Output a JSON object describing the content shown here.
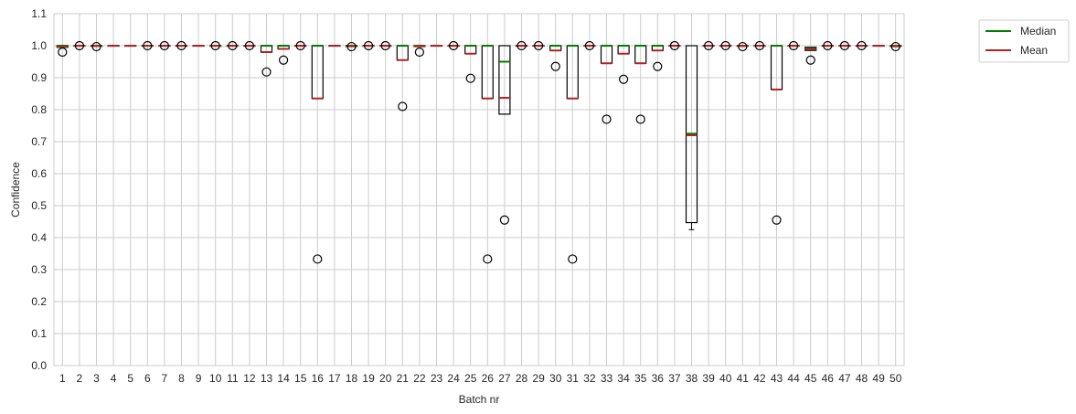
{
  "chart_data": {
    "type": "boxplot",
    "xlabel": "Batch nr",
    "ylabel": "Confidence",
    "ylim": [
      0.0,
      1.1
    ],
    "yticks": [
      0.0,
      0.1,
      0.2,
      0.3,
      0.4,
      0.5,
      0.6,
      0.7,
      0.8,
      0.9,
      1.0,
      1.1
    ],
    "categories": [
      "1",
      "2",
      "3",
      "4",
      "5",
      "6",
      "7",
      "8",
      "9",
      "10",
      "11",
      "12",
      "13",
      "14",
      "15",
      "16",
      "17",
      "18",
      "19",
      "20",
      "21",
      "22",
      "23",
      "24",
      "25",
      "26",
      "27",
      "28",
      "29",
      "30",
      "31",
      "32",
      "33",
      "34",
      "35",
      "36",
      "37",
      "38",
      "39",
      "40",
      "41",
      "42",
      "43",
      "44",
      "45",
      "46",
      "47",
      "48",
      "49",
      "50"
    ],
    "grid": true,
    "legend_position": "top-right, outside plot",
    "legend": [
      {
        "label": "Median",
        "color": "#008000"
      },
      {
        "label": "Mean",
        "color": "#b22222"
      }
    ],
    "colors": {
      "median": "#008000",
      "mean": "#b22222",
      "box": "#000000",
      "grid": "#cccccc"
    },
    "boxes": [
      {
        "batch": "1",
        "q1": 0.995,
        "q3": 1.0,
        "median": 1.0,
        "mean": 0.996,
        "whisker_low": 0.995,
        "whisker_high": 1.0,
        "fliers": [
          0.98
        ]
      },
      {
        "batch": "2",
        "q1": 1.0,
        "q3": 1.0,
        "median": 1.0,
        "mean": 1.0,
        "whisker_low": 1.0,
        "whisker_high": 1.0,
        "fliers": [
          1.0
        ]
      },
      {
        "batch": "3",
        "q1": 1.0,
        "q3": 1.0,
        "median": 1.0,
        "mean": 0.999,
        "whisker_low": 1.0,
        "whisker_high": 1.0,
        "fliers": [
          0.997
        ]
      },
      {
        "batch": "4",
        "q1": 1.0,
        "q3": 1.0,
        "median": 1.0,
        "mean": 1.0,
        "whisker_low": 1.0,
        "whisker_high": 1.0,
        "fliers": []
      },
      {
        "batch": "5",
        "q1": 1.0,
        "q3": 1.0,
        "median": 1.0,
        "mean": 1.0,
        "whisker_low": 1.0,
        "whisker_high": 1.0,
        "fliers": []
      },
      {
        "batch": "6",
        "q1": 1.0,
        "q3": 1.0,
        "median": 1.0,
        "mean": 1.0,
        "whisker_low": 1.0,
        "whisker_high": 1.0,
        "fliers": [
          1.0
        ]
      },
      {
        "batch": "7",
        "q1": 1.0,
        "q3": 1.0,
        "median": 1.0,
        "mean": 1.0,
        "whisker_low": 1.0,
        "whisker_high": 1.0,
        "fliers": [
          1.0
        ]
      },
      {
        "batch": "8",
        "q1": 1.0,
        "q3": 1.0,
        "median": 1.0,
        "mean": 1.0,
        "whisker_low": 1.0,
        "whisker_high": 1.0,
        "fliers": [
          1.0
        ]
      },
      {
        "batch": "9",
        "q1": 1.0,
        "q3": 1.0,
        "median": 1.0,
        "mean": 1.0,
        "whisker_low": 1.0,
        "whisker_high": 1.0,
        "fliers": []
      },
      {
        "batch": "10",
        "q1": 1.0,
        "q3": 1.0,
        "median": 1.0,
        "mean": 1.0,
        "whisker_low": 1.0,
        "whisker_high": 1.0,
        "fliers": [
          1.0
        ]
      },
      {
        "batch": "11",
        "q1": 1.0,
        "q3": 1.0,
        "median": 1.0,
        "mean": 1.0,
        "whisker_low": 1.0,
        "whisker_high": 1.0,
        "fliers": [
          1.0
        ]
      },
      {
        "batch": "12",
        "q1": 1.0,
        "q3": 1.0,
        "median": 1.0,
        "mean": 1.0,
        "whisker_low": 1.0,
        "whisker_high": 1.0,
        "fliers": [
          1.0
        ]
      },
      {
        "batch": "13",
        "q1": 0.98,
        "q3": 1.0,
        "median": 1.0,
        "mean": 0.98,
        "whisker_low": 0.98,
        "whisker_high": 1.0,
        "fliers": [
          0.918
        ]
      },
      {
        "batch": "14",
        "q1": 0.99,
        "q3": 1.0,
        "median": 1.0,
        "mean": 0.99,
        "whisker_low": 0.99,
        "whisker_high": 1.0,
        "fliers": [
          0.955
        ]
      },
      {
        "batch": "15",
        "q1": 1.0,
        "q3": 1.0,
        "median": 1.0,
        "mean": 1.0,
        "whisker_low": 1.0,
        "whisker_high": 1.0,
        "fliers": [
          1.0
        ]
      },
      {
        "batch": "16",
        "q1": 0.835,
        "q3": 1.0,
        "median": 1.0,
        "mean": 0.835,
        "whisker_low": 0.835,
        "whisker_high": 1.0,
        "fliers": [
          0.333
        ]
      },
      {
        "batch": "17",
        "q1": 1.0,
        "q3": 1.0,
        "median": 1.0,
        "mean": 1.0,
        "whisker_low": 1.0,
        "whisker_high": 1.0,
        "fliers": []
      },
      {
        "batch": "18",
        "q1": 1.0,
        "q3": 1.0,
        "median": 1.0,
        "mean": 0.998,
        "whisker_low": 1.0,
        "whisker_high": 1.0,
        "fliers": [
          0.997
        ]
      },
      {
        "batch": "19",
        "q1": 1.0,
        "q3": 1.0,
        "median": 1.0,
        "mean": 1.0,
        "whisker_low": 1.0,
        "whisker_high": 1.0,
        "fliers": [
          1.0
        ]
      },
      {
        "batch": "20",
        "q1": 1.0,
        "q3": 1.0,
        "median": 1.0,
        "mean": 1.0,
        "whisker_low": 1.0,
        "whisker_high": 1.0,
        "fliers": [
          1.0
        ]
      },
      {
        "batch": "21",
        "q1": 0.955,
        "q3": 1.0,
        "median": 1.0,
        "mean": 0.955,
        "whisker_low": 0.955,
        "whisker_high": 1.0,
        "fliers": [
          0.81
        ]
      },
      {
        "batch": "22",
        "q1": 0.998,
        "q3": 1.0,
        "median": 1.0,
        "mean": 0.998,
        "whisker_low": 0.998,
        "whisker_high": 1.0,
        "fliers": [
          0.98
        ]
      },
      {
        "batch": "23",
        "q1": 1.0,
        "q3": 1.0,
        "median": 1.0,
        "mean": 1.0,
        "whisker_low": 1.0,
        "whisker_high": 1.0,
        "fliers": []
      },
      {
        "batch": "24",
        "q1": 1.0,
        "q3": 1.0,
        "median": 1.0,
        "mean": 1.0,
        "whisker_low": 1.0,
        "whisker_high": 1.0,
        "fliers": [
          1.0
        ]
      },
      {
        "batch": "25",
        "q1": 0.975,
        "q3": 1.0,
        "median": 1.0,
        "mean": 0.975,
        "whisker_low": 0.975,
        "whisker_high": 1.0,
        "fliers": [
          0.898
        ]
      },
      {
        "batch": "26",
        "q1": 0.835,
        "q3": 1.0,
        "median": 1.0,
        "mean": 0.835,
        "whisker_low": 0.835,
        "whisker_high": 1.0,
        "fliers": [
          0.333
        ]
      },
      {
        "batch": "27",
        "q1": 0.786,
        "q3": 1.0,
        "median": 0.95,
        "mean": 0.837,
        "whisker_low": 0.786,
        "whisker_high": 1.0,
        "fliers": [
          0.455
        ]
      },
      {
        "batch": "28",
        "q1": 1.0,
        "q3": 1.0,
        "median": 1.0,
        "mean": 1.0,
        "whisker_low": 1.0,
        "whisker_high": 1.0,
        "fliers": [
          1.0
        ]
      },
      {
        "batch": "29",
        "q1": 1.0,
        "q3": 1.0,
        "median": 1.0,
        "mean": 1.0,
        "whisker_low": 1.0,
        "whisker_high": 1.0,
        "fliers": [
          1.0
        ]
      },
      {
        "batch": "30",
        "q1": 0.985,
        "q3": 1.0,
        "median": 1.0,
        "mean": 0.985,
        "whisker_low": 0.985,
        "whisker_high": 1.0,
        "fliers": [
          0.935
        ]
      },
      {
        "batch": "31",
        "q1": 0.835,
        "q3": 1.0,
        "median": 1.0,
        "mean": 0.835,
        "whisker_low": 0.835,
        "whisker_high": 1.0,
        "fliers": [
          0.333
        ]
      },
      {
        "batch": "32",
        "q1": 1.0,
        "q3": 1.0,
        "median": 1.0,
        "mean": 1.0,
        "whisker_low": 1.0,
        "whisker_high": 1.0,
        "fliers": [
          1.0
        ]
      },
      {
        "batch": "33",
        "q1": 0.945,
        "q3": 1.0,
        "median": 1.0,
        "mean": 0.945,
        "whisker_low": 0.945,
        "whisker_high": 1.0,
        "fliers": [
          0.77
        ]
      },
      {
        "batch": "34",
        "q1": 0.975,
        "q3": 1.0,
        "median": 1.0,
        "mean": 0.975,
        "whisker_low": 0.975,
        "whisker_high": 1.0,
        "fliers": [
          0.895
        ]
      },
      {
        "batch": "35",
        "q1": 0.945,
        "q3": 1.0,
        "median": 1.0,
        "mean": 0.945,
        "whisker_low": 0.945,
        "whisker_high": 1.0,
        "fliers": [
          0.77
        ]
      },
      {
        "batch": "36",
        "q1": 0.985,
        "q3": 1.0,
        "median": 1.0,
        "mean": 0.985,
        "whisker_low": 0.985,
        "whisker_high": 1.0,
        "fliers": [
          0.935
        ]
      },
      {
        "batch": "37",
        "q1": 1.0,
        "q3": 1.0,
        "median": 1.0,
        "mean": 1.0,
        "whisker_low": 1.0,
        "whisker_high": 1.0,
        "fliers": [
          1.0
        ]
      },
      {
        "batch": "38",
        "q1": 0.447,
        "q3": 1.0,
        "median": 0.725,
        "mean": 0.72,
        "whisker_low": 0.425,
        "whisker_high": 1.0,
        "fliers": []
      },
      {
        "batch": "39",
        "q1": 1.0,
        "q3": 1.0,
        "median": 1.0,
        "mean": 1.0,
        "whisker_low": 1.0,
        "whisker_high": 1.0,
        "fliers": [
          1.0
        ]
      },
      {
        "batch": "40",
        "q1": 1.0,
        "q3": 1.0,
        "median": 1.0,
        "mean": 1.0,
        "whisker_low": 1.0,
        "whisker_high": 1.0,
        "fliers": [
          1.0
        ]
      },
      {
        "batch": "41",
        "q1": 1.0,
        "q3": 1.0,
        "median": 1.0,
        "mean": 0.999,
        "whisker_low": 1.0,
        "whisker_high": 1.0,
        "fliers": [
          0.997
        ]
      },
      {
        "batch": "42",
        "q1": 1.0,
        "q3": 1.0,
        "median": 1.0,
        "mean": 1.0,
        "whisker_low": 1.0,
        "whisker_high": 1.0,
        "fliers": [
          1.0
        ]
      },
      {
        "batch": "43",
        "q1": 0.863,
        "q3": 1.0,
        "median": 1.0,
        "mean": 0.863,
        "whisker_low": 0.863,
        "whisker_high": 1.0,
        "fliers": [
          0.455
        ]
      },
      {
        "batch": "44",
        "q1": 1.0,
        "q3": 1.0,
        "median": 1.0,
        "mean": 1.0,
        "whisker_low": 1.0,
        "whisker_high": 1.0,
        "fliers": [
          1.0
        ]
      },
      {
        "batch": "45",
        "q1": 0.985,
        "q3": 0.995,
        "median": 0.99,
        "mean": 0.988,
        "whisker_low": 0.985,
        "whisker_high": 0.995,
        "fliers": [
          0.955
        ]
      },
      {
        "batch": "46",
        "q1": 1.0,
        "q3": 1.0,
        "median": 1.0,
        "mean": 1.0,
        "whisker_low": 1.0,
        "whisker_high": 1.0,
        "fliers": [
          1.0
        ]
      },
      {
        "batch": "47",
        "q1": 1.0,
        "q3": 1.0,
        "median": 1.0,
        "mean": 1.0,
        "whisker_low": 1.0,
        "whisker_high": 1.0,
        "fliers": [
          1.0
        ]
      },
      {
        "batch": "48",
        "q1": 1.0,
        "q3": 1.0,
        "median": 1.0,
        "mean": 1.0,
        "whisker_low": 1.0,
        "whisker_high": 1.0,
        "fliers": [
          1.0
        ]
      },
      {
        "batch": "49",
        "q1": 1.0,
        "q3": 1.0,
        "median": 1.0,
        "mean": 1.0,
        "whisker_low": 1.0,
        "whisker_high": 1.0,
        "fliers": []
      },
      {
        "batch": "50",
        "q1": 1.0,
        "q3": 1.0,
        "median": 1.0,
        "mean": 0.998,
        "whisker_low": 1.0,
        "whisker_high": 1.0,
        "fliers": [
          0.997
        ]
      }
    ]
  }
}
